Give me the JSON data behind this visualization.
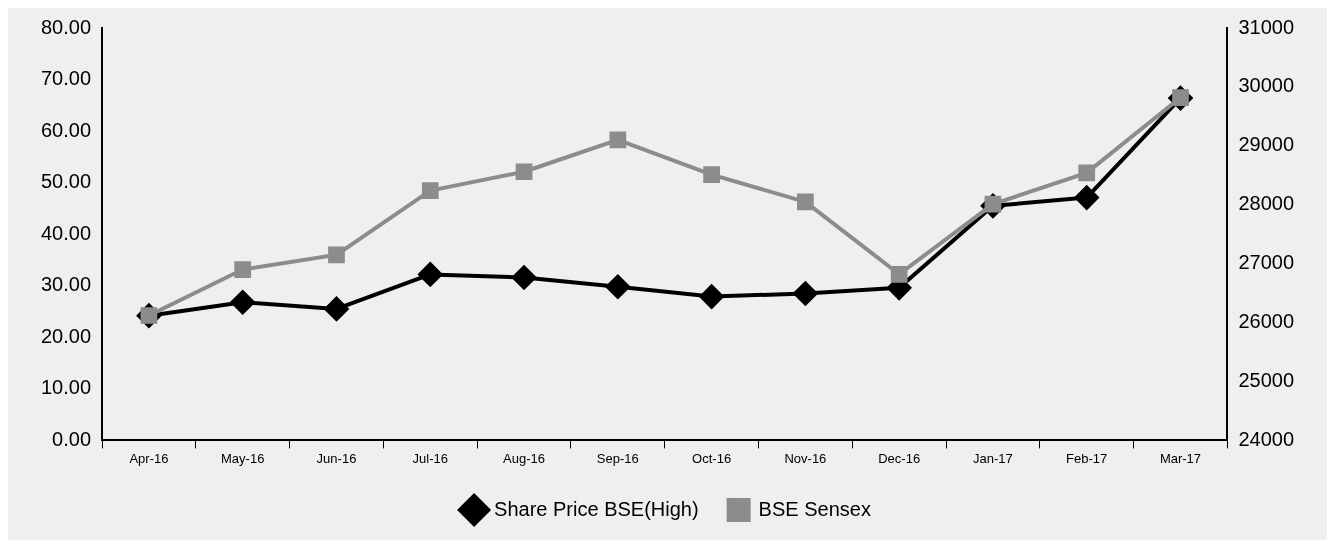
{
  "chart_data": {
    "type": "line",
    "categories": [
      "Apr-16",
      "May-16",
      "Jun-16",
      "Jul-16",
      "Aug-16",
      "Sep-16",
      "Oct-16",
      "Nov-16",
      "Dec-16",
      "Jan-17",
      "Feb-17",
      "Mar-17"
    ],
    "series": [
      {
        "name": "Share Price BSE(High)",
        "color": "#000000",
        "marker": "diamond",
        "values": [
          24.2,
          26.8,
          25.5,
          32.2,
          31.6,
          29.8,
          27.9,
          28.5,
          29.6,
          45.5,
          47.1,
          66.4
        ]
      },
      {
        "name": "BSE Sensex",
        "color": "#8c8c8c",
        "marker": "square",
        "axis": "y2",
        "values": [
          26120,
          26900,
          27150,
          28240,
          28560,
          29100,
          28510,
          28050,
          26820,
          28010,
          28540,
          29820
        ]
      }
    ],
    "ylim": [
      0,
      80
    ],
    "yticks": [
      {
        "value": 0,
        "label": "0.00"
      },
      {
        "value": 10,
        "label": "10.00"
      },
      {
        "value": 20,
        "label": "20.00"
      },
      {
        "value": 30,
        "label": "30.00"
      },
      {
        "value": 40,
        "label": "40.00"
      },
      {
        "value": 50,
        "label": "50.00"
      },
      {
        "value": 60,
        "label": "60.00"
      },
      {
        "value": 70,
        "label": "70.00"
      },
      {
        "value": 80,
        "label": "80.00"
      }
    ],
    "y2lim": [
      24000,
      31000
    ],
    "y2ticks": [
      24000,
      25000,
      26000,
      27000,
      28000,
      29000,
      30000,
      31000
    ],
    "grid": false,
    "legend": "bottom",
    "line_style": "solid"
  }
}
